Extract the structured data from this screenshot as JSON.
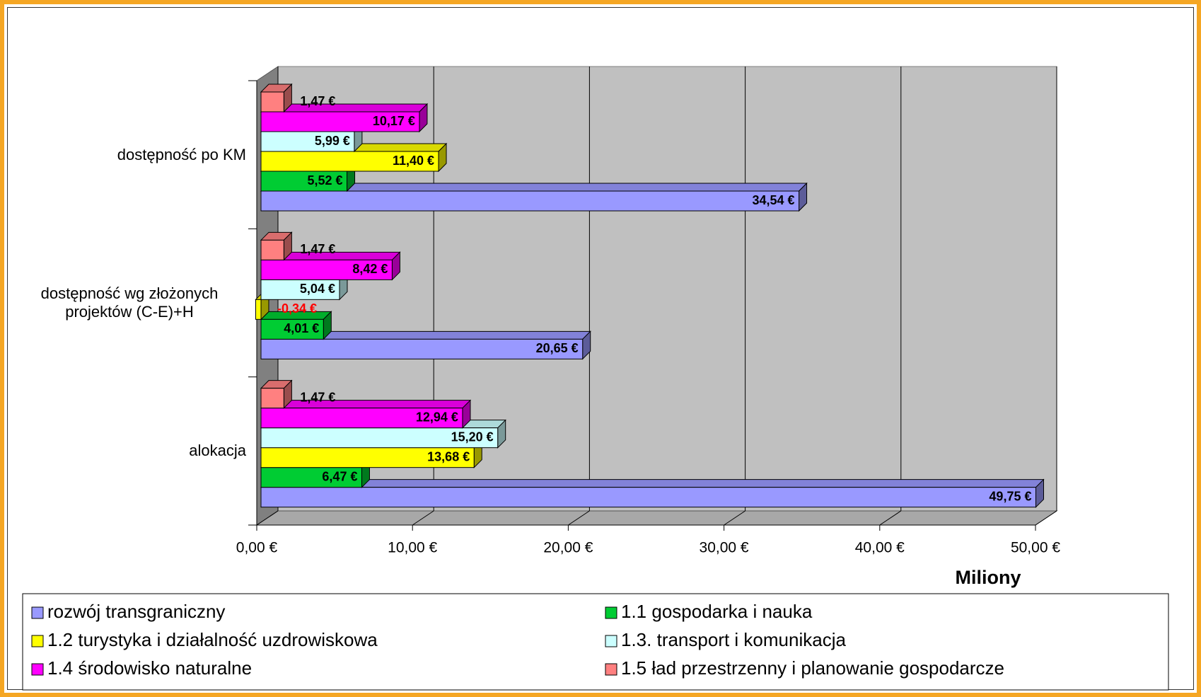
{
  "chart_data": {
    "type": "bar",
    "orientation": "horizontal",
    "three_d": true,
    "categories": [
      "alokacja",
      "dostępność wg złożonych projektów (C-E)+H",
      "dostępność po KM"
    ],
    "series": [
      {
        "name": "rozwój transgraniczny",
        "color": "#9999ff",
        "values": [
          49.75,
          20.65,
          34.54
        ],
        "value_labels": [
          "49,75 €",
          "20,65 €",
          "34,54 €"
        ]
      },
      {
        "name": "1.1 gospodarka i nauka",
        "color": "#00cc33",
        "values": [
          6.47,
          4.01,
          5.52
        ],
        "value_labels": [
          "6,47 €",
          "4,01 €",
          "5,52 €"
        ]
      },
      {
        "name": "1.2 turystyka i działalność uzdrowiskowa",
        "color": "#ffff00",
        "values": [
          13.68,
          -0.34,
          11.4
        ],
        "value_labels": [
          "13,68 €",
          "-0,34 €",
          "11,40 €"
        ]
      },
      {
        "name": "1.3. transport i komunikacja",
        "color": "#ccffff",
        "values": [
          15.2,
          5.04,
          5.99
        ],
        "value_labels": [
          "15,20 €",
          "5,04 €",
          "5,99 €"
        ]
      },
      {
        "name": "1.4 środowisko naturalne",
        "color": "#ff00ff",
        "values": [
          12.94,
          8.42,
          10.17
        ],
        "value_labels": [
          "12,94 €",
          "8,42 €",
          "10,17 €"
        ]
      },
      {
        "name": "1.5 ład przestrzenny i planowanie gospodarcze",
        "color": "#ff8080",
        "values": [
          1.47,
          1.47,
          1.47
        ],
        "value_labels": [
          "1,47 €",
          "1,47 €",
          "1,47 €"
        ]
      }
    ],
    "xlim": [
      0,
      50
    ],
    "xticks": [
      {
        "value": 0,
        "label": "0,00 €"
      },
      {
        "value": 10,
        "label": "10,00 €"
      },
      {
        "value": 20,
        "label": "20,00 €"
      },
      {
        "value": 30,
        "label": "30,00 €"
      },
      {
        "value": 40,
        "label": "40,00 €"
      },
      {
        "value": 50,
        "label": "50,00 €"
      }
    ],
    "x_label": "Miliony",
    "grid": true,
    "legend": "bottom"
  }
}
